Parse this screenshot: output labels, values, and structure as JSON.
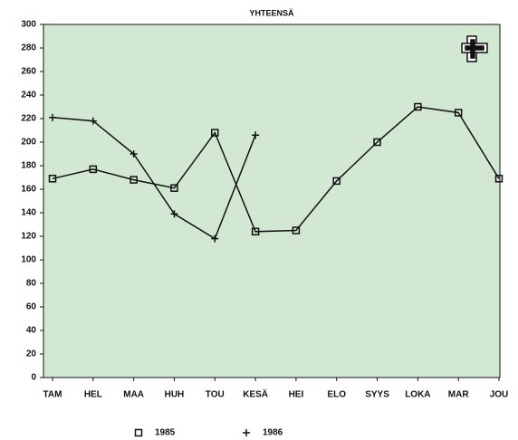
{
  "chart_data": {
    "type": "line",
    "title": "YHTEENSÄ",
    "categories": [
      "TAM",
      "HEL",
      "MAA",
      "HUH",
      "TOU",
      "KESÄ",
      "HEI",
      "ELO",
      "SYYS",
      "LOKA",
      "MAR",
      "JOU"
    ],
    "series": [
      {
        "name": "1985",
        "color": "#111111",
        "marker": "square",
        "values": [
          169,
          177,
          168,
          161,
          208,
          124,
          125,
          167,
          200,
          230,
          225,
          169
        ]
      },
      {
        "name": "1986",
        "color": "#111111",
        "marker": "plus",
        "values": [
          221,
          218,
          190,
          139,
          118,
          206,
          null,
          null,
          null,
          null,
          null,
          null
        ]
      }
    ],
    "ylim": [
      0,
      300
    ],
    "yticks": [
      0,
      20,
      40,
      60,
      80,
      100,
      120,
      140,
      160,
      180,
      200,
      220,
      240,
      260,
      280,
      300
    ],
    "grid": false,
    "background": "#d3e8d3",
    "legend": "bottom"
  }
}
